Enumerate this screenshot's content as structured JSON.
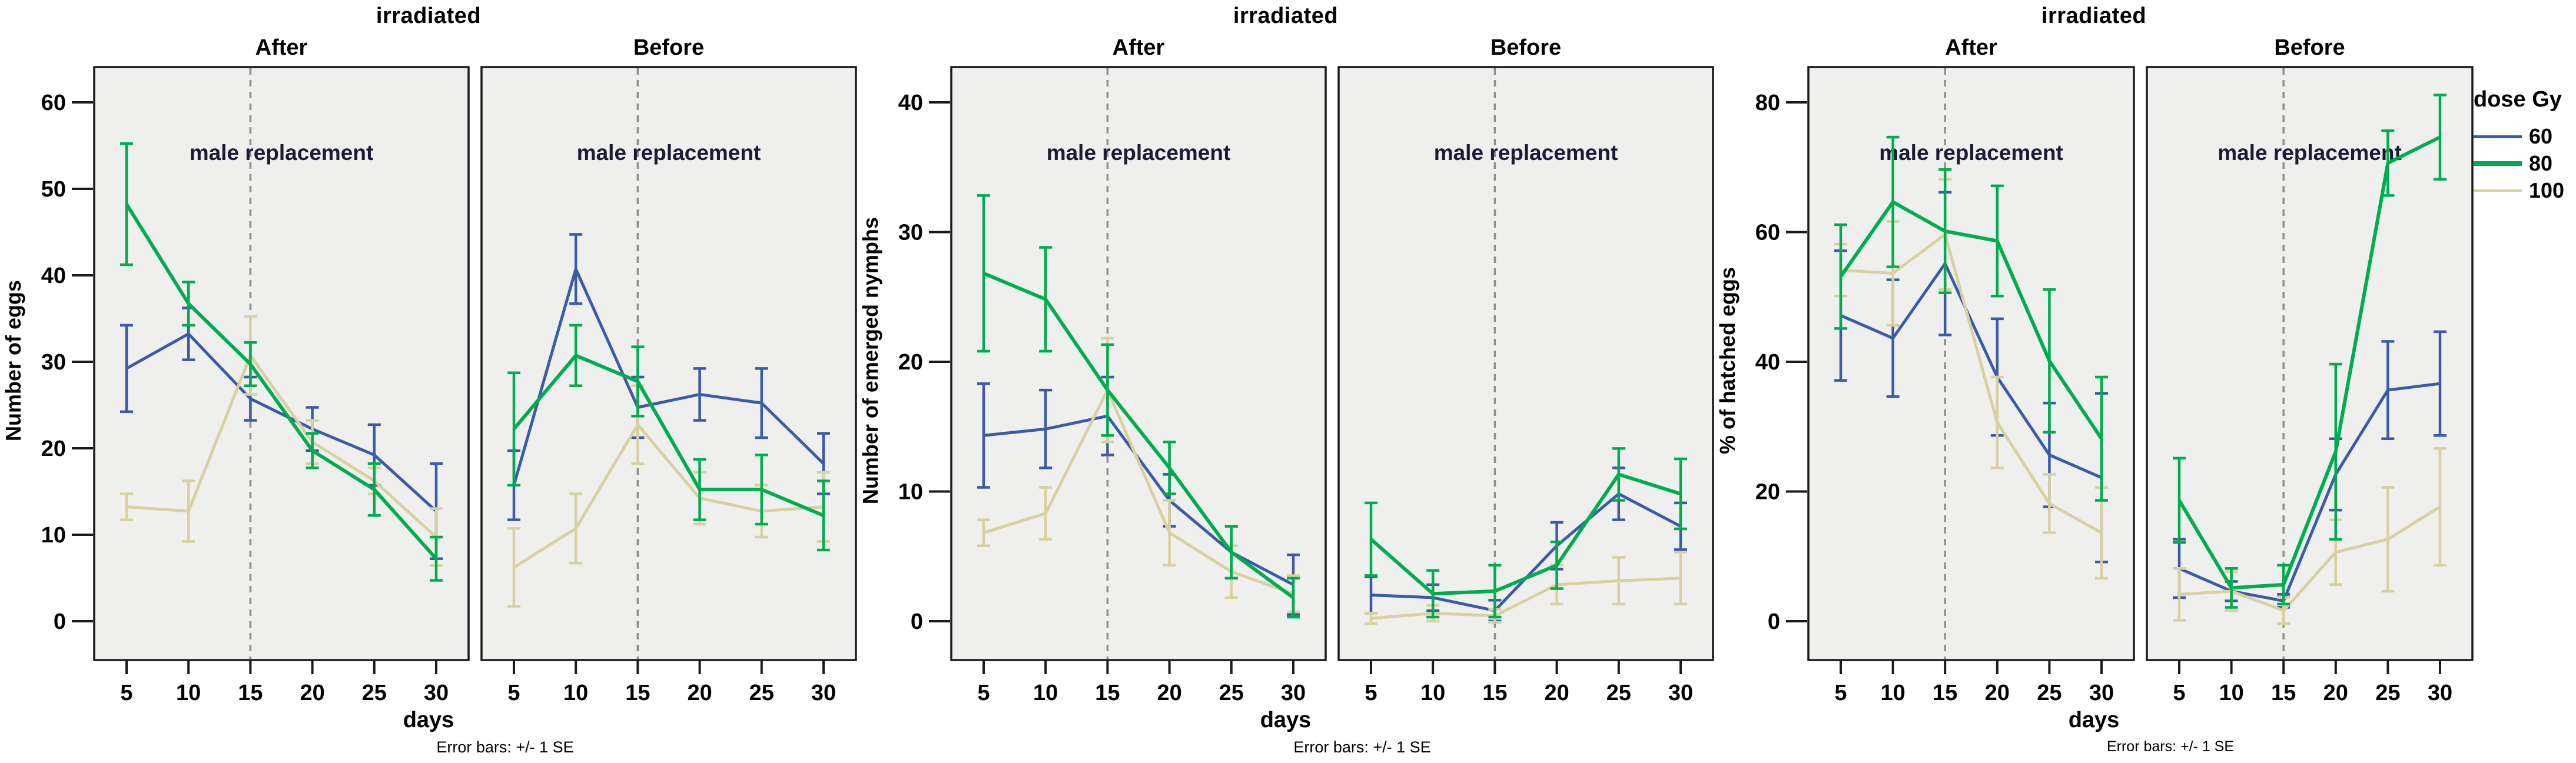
{
  "figure": {
    "group_title": "irradiated",
    "xlabel": "days",
    "footnote": "Error bars: +/- 1 SE",
    "annotation": "male replacement",
    "panel_titles": [
      "After",
      "Before"
    ],
    "x_ticks": [
      5,
      10,
      15,
      20,
      25,
      30
    ],
    "replacement_day": 15
  },
  "legend": {
    "title": "dose Gy",
    "entries": [
      {
        "label": "60",
        "color": "#3A5BA8",
        "thickness": 5
      },
      {
        "label": "80",
        "color": "#00AD4E",
        "thickness": 8
      },
      {
        "label": "100",
        "color": "#D8D0A0",
        "thickness": 4
      }
    ]
  },
  "colors": {
    "panel_bg": "#EFEFED",
    "frame": "#1A1A1A",
    "dashed_line": "#8F8F8F",
    "text": "#000000",
    "annotation_text": "#1B1B35",
    "series_60": "#3A5BA8",
    "series_80": "#00AD4E",
    "series_100": "#D8D0A0"
  },
  "chart_data": [
    {
      "type": "line",
      "title": "irradiated",
      "ylabel": "Number of eggs",
      "xlabel": "days",
      "x": [
        5,
        10,
        15,
        20,
        25,
        30
      ],
      "ylim": [
        0,
        60
      ],
      "yticks": [
        0,
        10,
        20,
        30,
        40,
        50,
        60
      ],
      "legend_position": "right",
      "grid": false,
      "panels": [
        {
          "title": "After",
          "series": [
            {
              "name": "60",
              "color": "#3A5BA8",
              "mean": [
                29.5,
                33.5,
                26,
                22.5,
                19.5,
                13
              ],
              "se": [
                5,
                3,
                2.5,
                2.5,
                3.5,
                5.5
              ]
            },
            {
              "name": "80",
              "color": "#00AD4E",
              "mean": [
                48.5,
                37,
                30,
                20,
                15.5,
                7.5
              ],
              "se": [
                7,
                2.5,
                2.5,
                2,
                3,
                2.5
              ]
            },
            {
              "name": "100",
              "color": "#D8D0A0",
              "mean": [
                13.5,
                13,
                31,
                21,
                16.5,
                10
              ],
              "se": [
                1.5,
                3.5,
                4.5,
                2.5,
                1.5,
                3.3
              ]
            }
          ]
        },
        {
          "title": "Before",
          "series": [
            {
              "name": "60",
              "color": "#3A5BA8",
              "mean": [
                16,
                41,
                25,
                26.5,
                25.5,
                18.5
              ],
              "se": [
                4,
                4,
                3.5,
                3,
                4,
                3.5
              ]
            },
            {
              "name": "80",
              "color": "#00AD4E",
              "mean": [
                22.5,
                31,
                28,
                15.5,
                15.5,
                12.5
              ],
              "se": [
                6.5,
                3.5,
                4,
                3.5,
                4,
                4
              ]
            },
            {
              "name": "100",
              "color": "#D8D0A0",
              "mean": [
                6.5,
                11,
                23,
                14.5,
                13,
                13.5
              ],
              "se": [
                4.5,
                4,
                4.5,
                3,
                3,
                4
              ]
            }
          ]
        }
      ]
    },
    {
      "type": "line",
      "title": "irradiated",
      "ylabel": "Number of emerged nymphs",
      "xlabel": "days",
      "x": [
        5,
        10,
        15,
        20,
        25,
        30
      ],
      "ylim": [
        0,
        40
      ],
      "yticks": [
        0,
        10,
        20,
        30,
        40
      ],
      "legend_position": "right",
      "grid": false,
      "panels": [
        {
          "title": "After",
          "series": [
            {
              "name": "60",
              "color": "#3A5BA8",
              "mean": [
                14.5,
                15,
                16,
                9.5,
                5.5,
                3
              ],
              "se": [
                4,
                3,
                3,
                2,
                2,
                2.3
              ]
            },
            {
              "name": "80",
              "color": "#00AD4E",
              "mean": [
                27,
                25,
                18,
                12,
                5.5,
                2
              ],
              "se": [
                6,
                4,
                3.5,
                2,
                2,
                1.5
              ]
            },
            {
              "name": "100",
              "color": "#D8D0A0",
              "mean": [
                7,
                8.5,
                18,
                7,
                4,
                2.3
              ],
              "se": [
                1,
                2,
                4,
                2.5,
                2,
                1.4
              ]
            }
          ]
        },
        {
          "title": "Before",
          "series": [
            {
              "name": "60",
              "color": "#3A5BA8",
              "mean": [
                2.2,
                2,
                1,
                6,
                10,
                7.5
              ],
              "se": [
                1.4,
                1,
                0.8,
                1.8,
                2,
                1.8
              ]
            },
            {
              "name": "80",
              "color": "#00AD4E",
              "mean": [
                6.5,
                2.3,
                2.5,
                4.5,
                11.5,
                10
              ],
              "se": [
                2.8,
                1.8,
                2,
                1.8,
                2,
                2.7
              ]
            },
            {
              "name": "100",
              "color": "#D8D0A0",
              "mean": [
                0.4,
                0.8,
                0.6,
                3,
                3.3,
                3.5
              ],
              "se": [
                0.4,
                0.6,
                0.5,
                1.5,
                1.8,
                2
              ]
            }
          ]
        }
      ]
    },
    {
      "type": "line",
      "title": "irradiated",
      "ylabel": "% of hatched eggs",
      "xlabel": "days",
      "x": [
        5,
        10,
        15,
        20,
        25,
        30
      ],
      "ylim": [
        0,
        80
      ],
      "yticks": [
        0,
        20,
        40,
        60,
        80
      ],
      "legend_position": "right",
      "grid": false,
      "panels": [
        {
          "title": "After",
          "series": [
            {
              "name": "60",
              "color": "#3A5BA8",
              "mean": [
                47.5,
                44,
                55.5,
                38,
                26,
                22.5
              ],
              "se": [
                10,
                9,
                11,
                9,
                8,
                13
              ]
            },
            {
              "name": "80",
              "color": "#00AD4E",
              "mean": [
                53.5,
                65,
                60.5,
                59,
                40.5,
                28.5
              ],
              "se": [
                8,
                10,
                9.5,
                8.5,
                11,
                9.5
              ]
            },
            {
              "name": "100",
              "color": "#D8D0A0",
              "mean": [
                54.5,
                54,
                60,
                31,
                18.5,
                14
              ],
              "se": [
                4,
                8,
                8.5,
                7,
                4.5,
                7
              ]
            }
          ]
        },
        {
          "title": "Before",
          "series": [
            {
              "name": "60",
              "color": "#3A5BA8",
              "mean": [
                8.5,
                5,
                3.5,
                23,
                36,
                37
              ],
              "se": [
                4.5,
                1.5,
                1,
                5.5,
                7.5,
                8
              ]
            },
            {
              "name": "80",
              "color": "#00AD4E",
              "mean": [
                19,
                5.5,
                6,
                26.5,
                71,
                75
              ],
              "se": [
                6.5,
                3,
                3,
                13.5,
                5,
                6.5
              ]
            },
            {
              "name": "100",
              "color": "#D8D0A0",
              "mean": [
                4.5,
                5,
                2,
                11,
                13,
                18
              ],
              "se": [
                4,
                3,
                2,
                5,
                8,
                9
              ]
            }
          ]
        }
      ]
    }
  ]
}
